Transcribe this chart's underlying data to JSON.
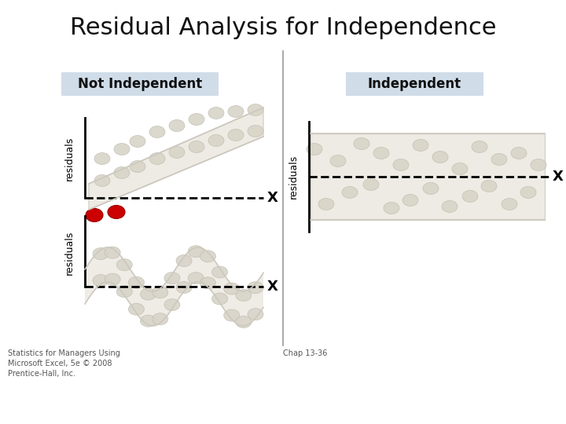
{
  "title": "Residual Analysis for Independence",
  "title_fontsize": 22,
  "background_color": "#ffffff",
  "label_not_independent": "Not Independent",
  "label_independent": "Independent",
  "label_bg": "#d0dce8",
  "ylabel": "residuals",
  "xlabel": "X",
  "footer_left": "Statistics for Managers Using\nMicrosoft Excel, 5e © 2008\nPrentice-Hall, Inc.",
  "footer_right": "Chap 13-36",
  "dot_color_light": "#d8d4c8",
  "dot_color_red": "#cc0000",
  "band_color": "#ebe8e0",
  "divider_color": "#999999"
}
